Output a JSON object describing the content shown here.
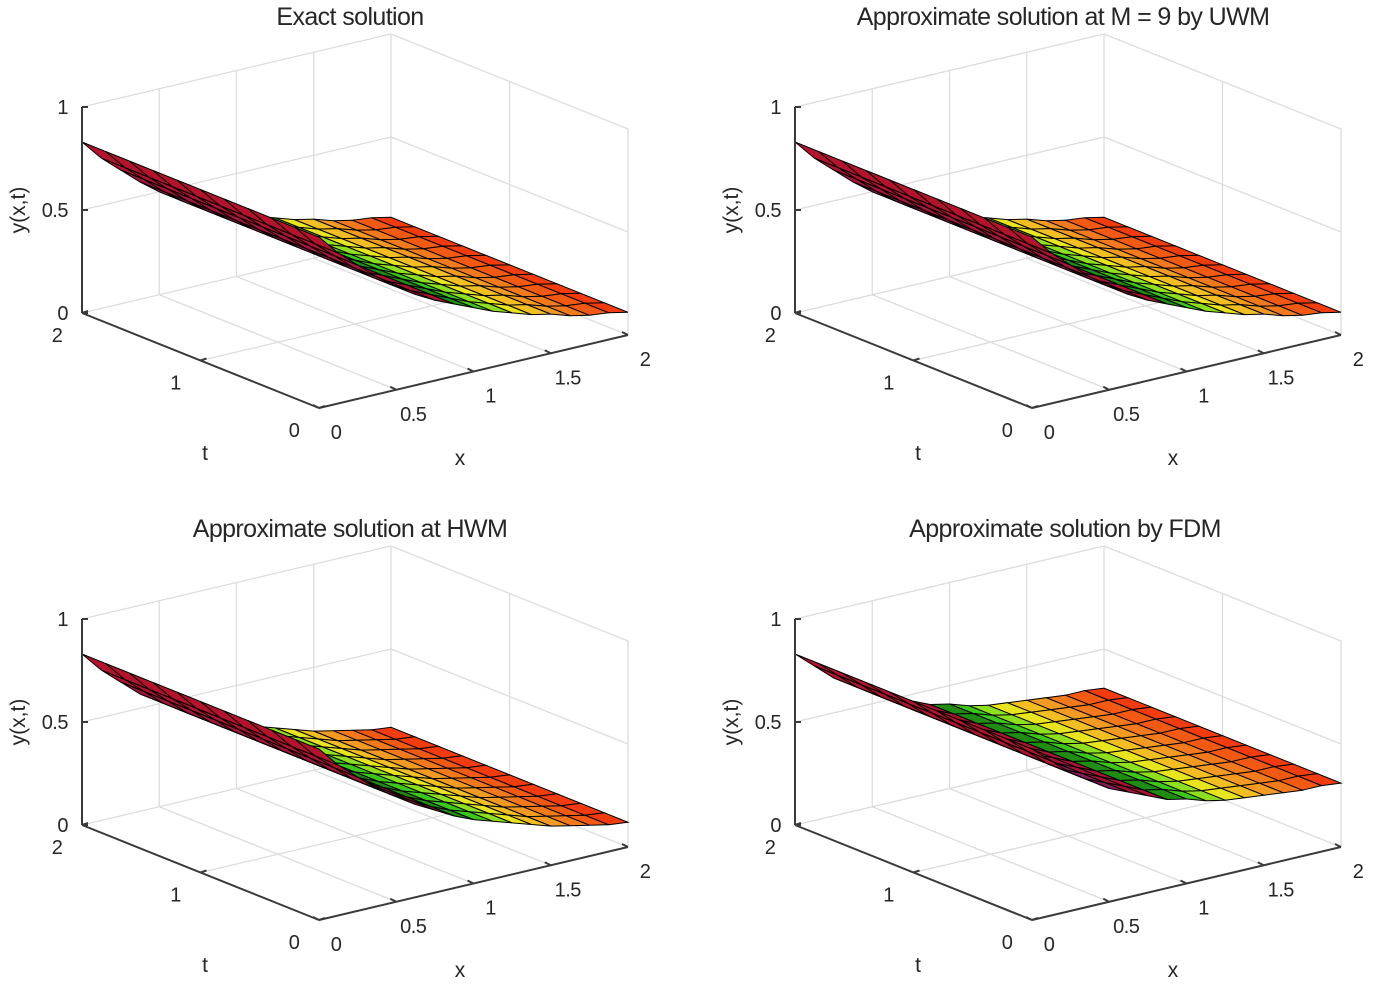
{
  "chart_data": [
    {
      "type": "surface",
      "title": "Exact solution",
      "xlabel": "x",
      "tlabel": "t",
      "zlabel": "y(x,t)",
      "xlim": [
        0,
        2
      ],
      "tlim": [
        0,
        2
      ],
      "zlim": [
        0,
        1
      ],
      "x_ticks": [
        "0",
        "0.5",
        "1",
        "1.5",
        "2"
      ],
      "t_ticks": [
        "0",
        "1",
        "2"
      ],
      "z_ticks": [
        "0",
        "0.5",
        "1"
      ],
      "grid": true,
      "x": [
        0,
        0.125,
        0.25,
        0.375,
        0.5,
        0.625,
        0.75,
        0.875,
        1,
        1.125,
        1.25,
        1.375,
        1.5,
        1.625,
        1.75,
        1.875,
        2
      ],
      "t": [
        0,
        0.2,
        0.4,
        0.6,
        0.8,
        1,
        1.2,
        1.4,
        1.6,
        1.8,
        2
      ],
      "y_vs_x": [
        0.83,
        0.73,
        0.65,
        0.57,
        0.5,
        0.44,
        0.39,
        0.35,
        0.31,
        0.27,
        0.24,
        0.21,
        0.19,
        0.16,
        0.14,
        0.13,
        0.11
      ]
    },
    {
      "type": "surface",
      "title": "Approximate solution at M = 9 by UWM",
      "xlabel": "x",
      "tlabel": "t",
      "zlabel": "y(x,t)",
      "xlim": [
        0,
        2
      ],
      "tlim": [
        0,
        2
      ],
      "zlim": [
        0,
        1
      ],
      "x_ticks": [
        "0",
        "0.5",
        "1",
        "1.5",
        "2"
      ],
      "t_ticks": [
        "0",
        "1",
        "2"
      ],
      "z_ticks": [
        "0",
        "0.5",
        "1"
      ],
      "grid": true,
      "x": [
        0,
        0.125,
        0.25,
        0.375,
        0.5,
        0.625,
        0.75,
        0.875,
        1,
        1.125,
        1.25,
        1.375,
        1.5,
        1.625,
        1.75,
        1.875,
        2
      ],
      "t": [
        0,
        0.2,
        0.4,
        0.6,
        0.8,
        1,
        1.2,
        1.4,
        1.6,
        1.8,
        2
      ],
      "y_vs_x": [
        0.83,
        0.73,
        0.65,
        0.57,
        0.5,
        0.44,
        0.39,
        0.35,
        0.31,
        0.27,
        0.24,
        0.21,
        0.19,
        0.16,
        0.14,
        0.13,
        0.11
      ]
    },
    {
      "type": "surface",
      "title": "Approximate solution at HWM",
      "xlabel": "x",
      "tlabel": "t",
      "zlabel": "y(x,t)",
      "xlim": [
        0,
        2
      ],
      "tlim": [
        0,
        2
      ],
      "zlim": [
        0,
        1
      ],
      "x_ticks": [
        "0",
        "0.5",
        "1",
        "1.5",
        "2"
      ],
      "t_ticks": [
        "0",
        "1",
        "2"
      ],
      "z_ticks": [
        "0",
        "0.5",
        "1"
      ],
      "grid": true,
      "x": [
        0,
        0.125,
        0.25,
        0.375,
        0.5,
        0.625,
        0.75,
        0.875,
        1,
        1.125,
        1.25,
        1.375,
        1.5,
        1.625,
        1.75,
        1.875,
        2
      ],
      "t": [
        0,
        0.2,
        0.4,
        0.6,
        0.8,
        1,
        1.2,
        1.4,
        1.6,
        1.8,
        2
      ],
      "y_vs_x": [
        0.83,
        0.73,
        0.65,
        0.57,
        0.51,
        0.45,
        0.4,
        0.35,
        0.31,
        0.28,
        0.25,
        0.22,
        0.19,
        0.17,
        0.15,
        0.13,
        0.12
      ]
    },
    {
      "type": "surface",
      "title": "Approximate solution by FDM",
      "xlabel": "x",
      "tlabel": "t",
      "zlabel": "y(x,t)",
      "xlim": [
        0,
        2
      ],
      "tlim": [
        0,
        2
      ],
      "zlim": [
        0,
        1
      ],
      "x_ticks": [
        "0",
        "0.5",
        "1",
        "1.5",
        "2"
      ],
      "t_ticks": [
        "0",
        "1",
        "2"
      ],
      "z_ticks": [
        "0",
        "0.5",
        "1"
      ],
      "grid": true,
      "x": [
        0,
        0.125,
        0.25,
        0.375,
        0.5,
        0.625,
        0.75,
        0.875,
        1,
        1.125,
        1.25,
        1.375,
        1.5,
        1.625,
        1.75,
        1.875,
        2
      ],
      "t": [
        0,
        0.2,
        0.4,
        0.6,
        0.8,
        1,
        1.2,
        1.4,
        1.6,
        1.8,
        2
      ],
      "y_vs_x": [
        0.83,
        0.75,
        0.67,
        0.61,
        0.55,
        0.51,
        0.47,
        0.43,
        0.41,
        0.38,
        0.36,
        0.35,
        0.34,
        0.33,
        0.32,
        0.32,
        0.31
      ]
    }
  ],
  "colors": {
    "cell_colors_by_x": [
      "#b5122c",
      "#b5122c",
      "#a8143a",
      "#9a1648",
      "#8c1a5a",
      "#a01238",
      "#b01230",
      "#1f8c12",
      "#3cc81a",
      "#8ee01e",
      "#e8e41e",
      "#f2be22",
      "#f29a22",
      "#f27a1c",
      "#f25a14",
      "#f23c10"
    ],
    "edge": "#000000",
    "grid": "#dcdcdc",
    "axis": "#3a3a3a"
  }
}
